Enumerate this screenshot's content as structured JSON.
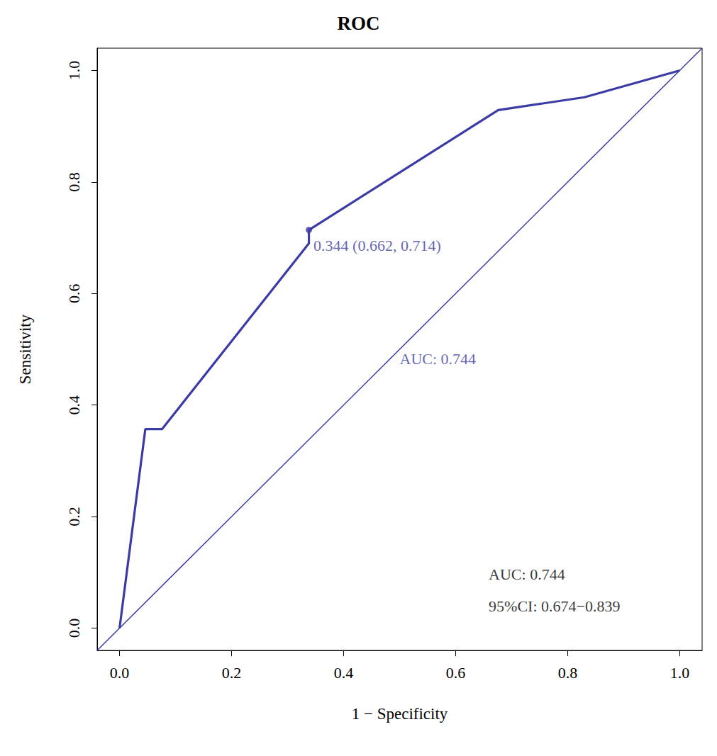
{
  "chart_data": {
    "type": "line",
    "title": "ROC",
    "x_label": "1 − Specificity",
    "y_label": "Sensitivity",
    "series": [
      {
        "x": [
          0,
          0.046,
          0.076,
          0.338,
          0.338,
          0.676,
          0.83,
          1
        ],
        "values": [
          0,
          0.357,
          0.357,
          0.69,
          0.714,
          0.929,
          0.952,
          1
        ],
        "color": "#3b3ba6",
        "line_style": "solid"
      },
      {
        "x": [
          -0.04,
          1.04
        ],
        "values": [
          -0.04,
          1.04
        ],
        "color": "#3b3ba6",
        "line_style": "solid"
      }
    ],
    "highlight": {
      "x": 0.338,
      "y": 0.714,
      "label": "0.344 (0.662, 0.714)",
      "color": "#3b3ba6",
      "marker": "circle"
    },
    "annotations": [
      {
        "text": "AUC: 0.744",
        "x": 0.5,
        "y": 0.483,
        "color": "#3b3ba6"
      },
      {
        "text": "AUC: 0.744",
        "x": 0.659,
        "y": 0.096,
        "color": "#000000"
      },
      {
        "text": "95%CI: 0.674−0.839",
        "x": 0.659,
        "y": 0.039,
        "color": "#000000"
      }
    ],
    "xlim": [
      -0.04,
      1.04
    ],
    "ylim": [
      -0.04,
      1.04
    ],
    "xticks": [
      {
        "value": 0,
        "label": "0.0"
      },
      0.2,
      0.4,
      0.6,
      0.8,
      {
        "value": 1,
        "label": "1.0"
      }
    ],
    "yticks": [
      {
        "value": 0,
        "label": "0.0"
      },
      0.2,
      0.4,
      0.6,
      0.8,
      {
        "value": 1,
        "label": "1.0"
      }
    ],
    "grid": false
  }
}
